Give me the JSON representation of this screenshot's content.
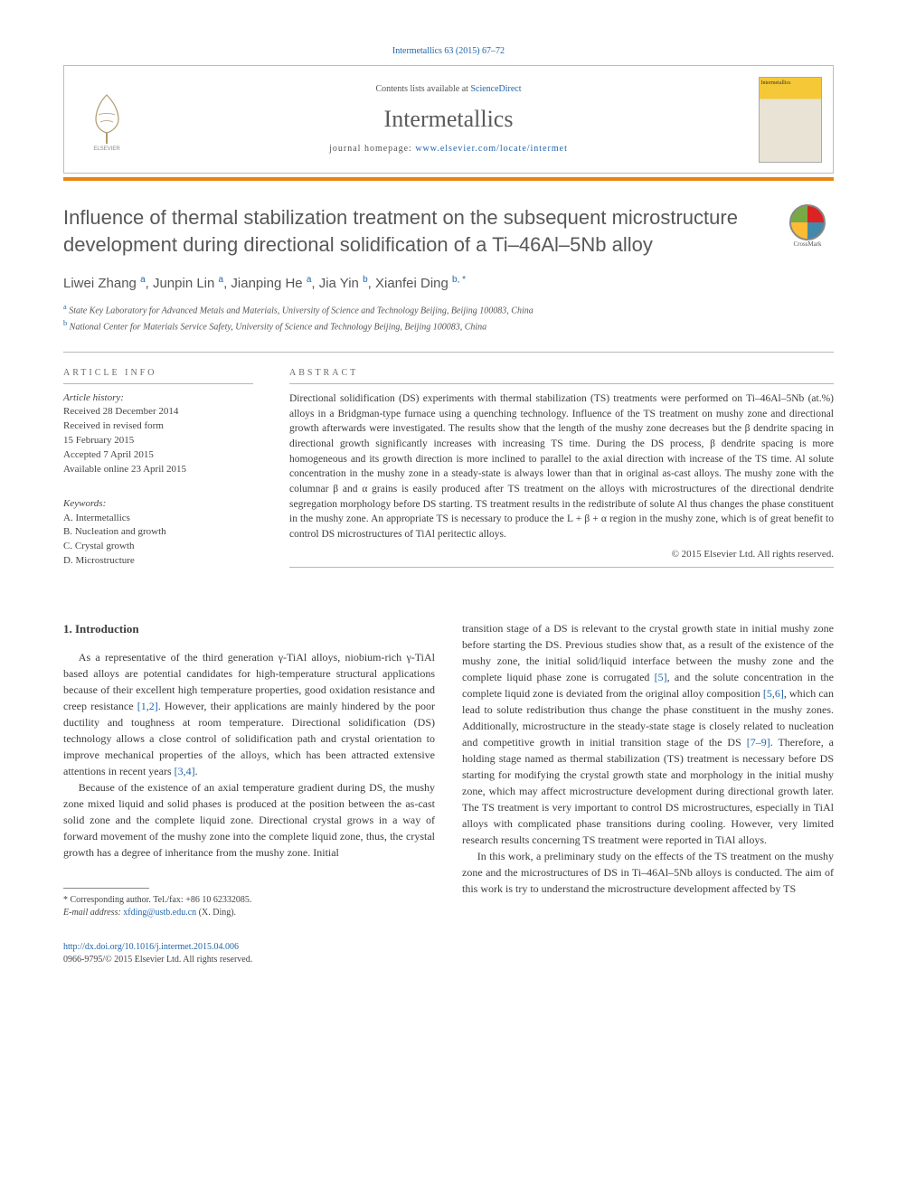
{
  "citation": "Intermetallics 63 (2015) 67–72",
  "header": {
    "contents_prefix": "Contents lists available at ",
    "contents_link": "ScienceDirect",
    "journal": "Intermetallics",
    "homepage_prefix": "journal homepage: ",
    "homepage_link": "www.elsevier.com/locate/intermet",
    "cover_label": "Intermetallics"
  },
  "title": "Influence of thermal stabilization treatment on the subsequent microstructure development during directional solidification of a Ti–46Al–5Nb alloy",
  "crossmark_label": "CrossMark",
  "authors_html": "Liwei Zhang <sup>a</sup>, Junpin Lin <sup>a</sup>, Jianping He <sup>a</sup>, Jia Yin <sup>b</sup>, Xianfei Ding <sup>b, *</sup>",
  "affiliations": [
    {
      "sup": "a",
      "text": "State Key Laboratory for Advanced Metals and Materials, University of Science and Technology Beijing, Beijing 100083, China"
    },
    {
      "sup": "b",
      "text": "National Center for Materials Service Safety, University of Science and Technology Beijing, Beijing 100083, China"
    }
  ],
  "article_info_label": "ARTICLE INFO",
  "abstract_label": "ABSTRACT",
  "history": {
    "label": "Article history:",
    "items": [
      "Received 28 December 2014",
      "Received in revised form",
      "15 February 2015",
      "Accepted 7 April 2015",
      "Available online 23 April 2015"
    ]
  },
  "keywords": {
    "label": "Keywords:",
    "items": [
      "A. Intermetallics",
      "B. Nucleation and growth",
      "C. Crystal growth",
      "D. Microstructure"
    ]
  },
  "abstract": "Directional solidification (DS) experiments with thermal stabilization (TS) treatments were performed on Ti–46Al–5Nb (at.%) alloys in a Bridgman-type furnace using a quenching technology. Influence of the TS treatment on mushy zone and directional growth afterwards were investigated. The results show that the length of the mushy zone decreases but the β dendrite spacing in directional growth significantly increases with increasing TS time. During the DS process, β dendrite spacing is more homogeneous and its growth direction is more inclined to parallel to the axial direction with increase of the TS time. Al solute concentration in the mushy zone in a steady-state is always lower than that in original as-cast alloys. The mushy zone with the columnar β and α grains is easily produced after TS treatment on the alloys with microstructures of the directional dendrite segregation morphology before DS starting. TS treatment results in the redistribute of solute Al thus changes the phase constituent in the mushy zone. An appropriate TS is necessary to produce the L + β + α region in the mushy zone, which is of great benefit to control DS microstructures of TiAl peritectic alloys.",
  "copyright": "© 2015 Elsevier Ltd. All rights reserved.",
  "intro_heading": "1. Introduction",
  "col1": {
    "p1": "As a representative of the third generation γ-TiAl alloys, niobium-rich γ-TiAl based alloys are potential candidates for high-temperature structural applications because of their excellent high temperature properties, good oxidation resistance and creep resistance [1,2]. However, their applications are mainly hindered by the poor ductility and toughness at room temperature. Directional solidification (DS) technology allows a close control of solidification path and crystal orientation to improve mechanical properties of the alloys, which has been attracted extensive attentions in recent years [3,4].",
    "p2": "Because of the existence of an axial temperature gradient during DS, the mushy zone mixed liquid and solid phases is produced at the position between the as-cast solid zone and the complete liquid zone. Directional crystal grows in a way of forward movement of the mushy zone into the complete liquid zone, thus, the crystal growth has a degree of inheritance from the mushy zone. Initial"
  },
  "col2": {
    "p1": "transition stage of a DS is relevant to the crystal growth state in initial mushy zone before starting the DS. Previous studies show that, as a result of the existence of the mushy zone, the initial solid/liquid interface between the mushy zone and the complete liquid phase zone is corrugated [5], and the solute concentration in the complete liquid zone is deviated from the original alloy composition [5,6], which can lead to solute redistribution thus change the phase constituent in the mushy zones. Additionally, microstructure in the steady-state stage is closely related to nucleation and competitive growth in initial transition stage of the DS [7–9]. Therefore, a holding stage named as thermal stabilization (TS) treatment is necessary before DS starting for modifying the crystal growth state and morphology in the initial mushy zone, which may affect microstructure development during directional growth later. The TS treatment is very important to control DS microstructures, especially in TiAl alloys with complicated phase transitions during cooling. However, very limited research results concerning TS treatment were reported in TiAl alloys.",
    "p2": "In this work, a preliminary study on the effects of the TS treatment on the mushy zone and the microstructures of DS in Ti–46Al–5Nb alloys is conducted. The aim of this work is try to understand the microstructure development affected by TS"
  },
  "footnote": {
    "corr": "* Corresponding author. Tel./fax: +86 10 62332085.",
    "email_label": "E-mail address: ",
    "email": "xfding@ustb.edu.cn",
    "email_suffix": " (X. Ding)."
  },
  "footer": {
    "doi": "http://dx.doi.org/10.1016/j.intermet.2015.04.006",
    "issn_line": "0966-9795/© 2015 Elsevier Ltd. All rights reserved."
  },
  "refs": {
    "r12": "[1,2]",
    "r34": "[3,4]",
    "r5": "[5]",
    "r56": "[5,6]",
    "r79": "[7–9]"
  },
  "colors": {
    "link": "#2266aa",
    "accent_bar": "#e8850f",
    "text": "#3a3a3a",
    "muted": "#585858"
  }
}
